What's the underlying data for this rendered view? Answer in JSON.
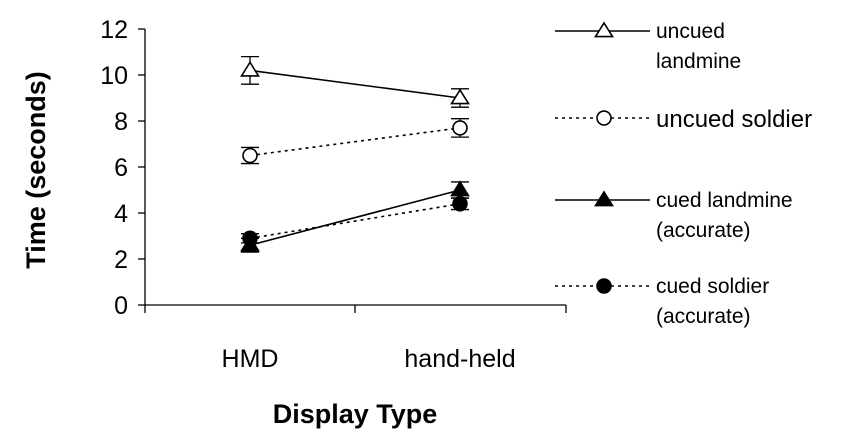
{
  "chart_data": {
    "type": "line",
    "xlabel": "Display Type",
    "ylabel": "Time (seconds)",
    "categories": [
      "HMD",
      "hand-held"
    ],
    "ylim": [
      0,
      12
    ],
    "yticks": [
      "0",
      "2",
      "4",
      "6",
      "8",
      "10",
      "12"
    ],
    "grid": false,
    "legend_position": "right",
    "series": [
      {
        "name": "uncued landmine",
        "legend_lines": [
          "uncued",
          "landmine"
        ],
        "values": [
          10.2,
          9.0
        ],
        "error": [
          0.6,
          0.4
        ],
        "marker": "triangle-open",
        "line_style": "solid"
      },
      {
        "name": "uncued soldier",
        "legend_lines": [
          "uncued soldier"
        ],
        "values": [
          6.5,
          7.7
        ],
        "error": [
          0.35,
          0.4
        ],
        "marker": "circle-open",
        "line_style": "dotted"
      },
      {
        "name": "cued landmine (accurate)",
        "legend_lines": [
          "cued landmine",
          "(accurate)"
        ],
        "values": [
          2.6,
          5.0
        ],
        "error": [
          0.3,
          0.35
        ],
        "marker": "triangle-filled",
        "line_style": "solid"
      },
      {
        "name": "cued soldier (accurate)",
        "legend_lines": [
          "cued soldier",
          "(accurate)"
        ],
        "values": [
          2.9,
          4.4
        ],
        "error": [
          0.2,
          0.25
        ],
        "marker": "circle-filled",
        "line_style": "dotted"
      }
    ]
  }
}
